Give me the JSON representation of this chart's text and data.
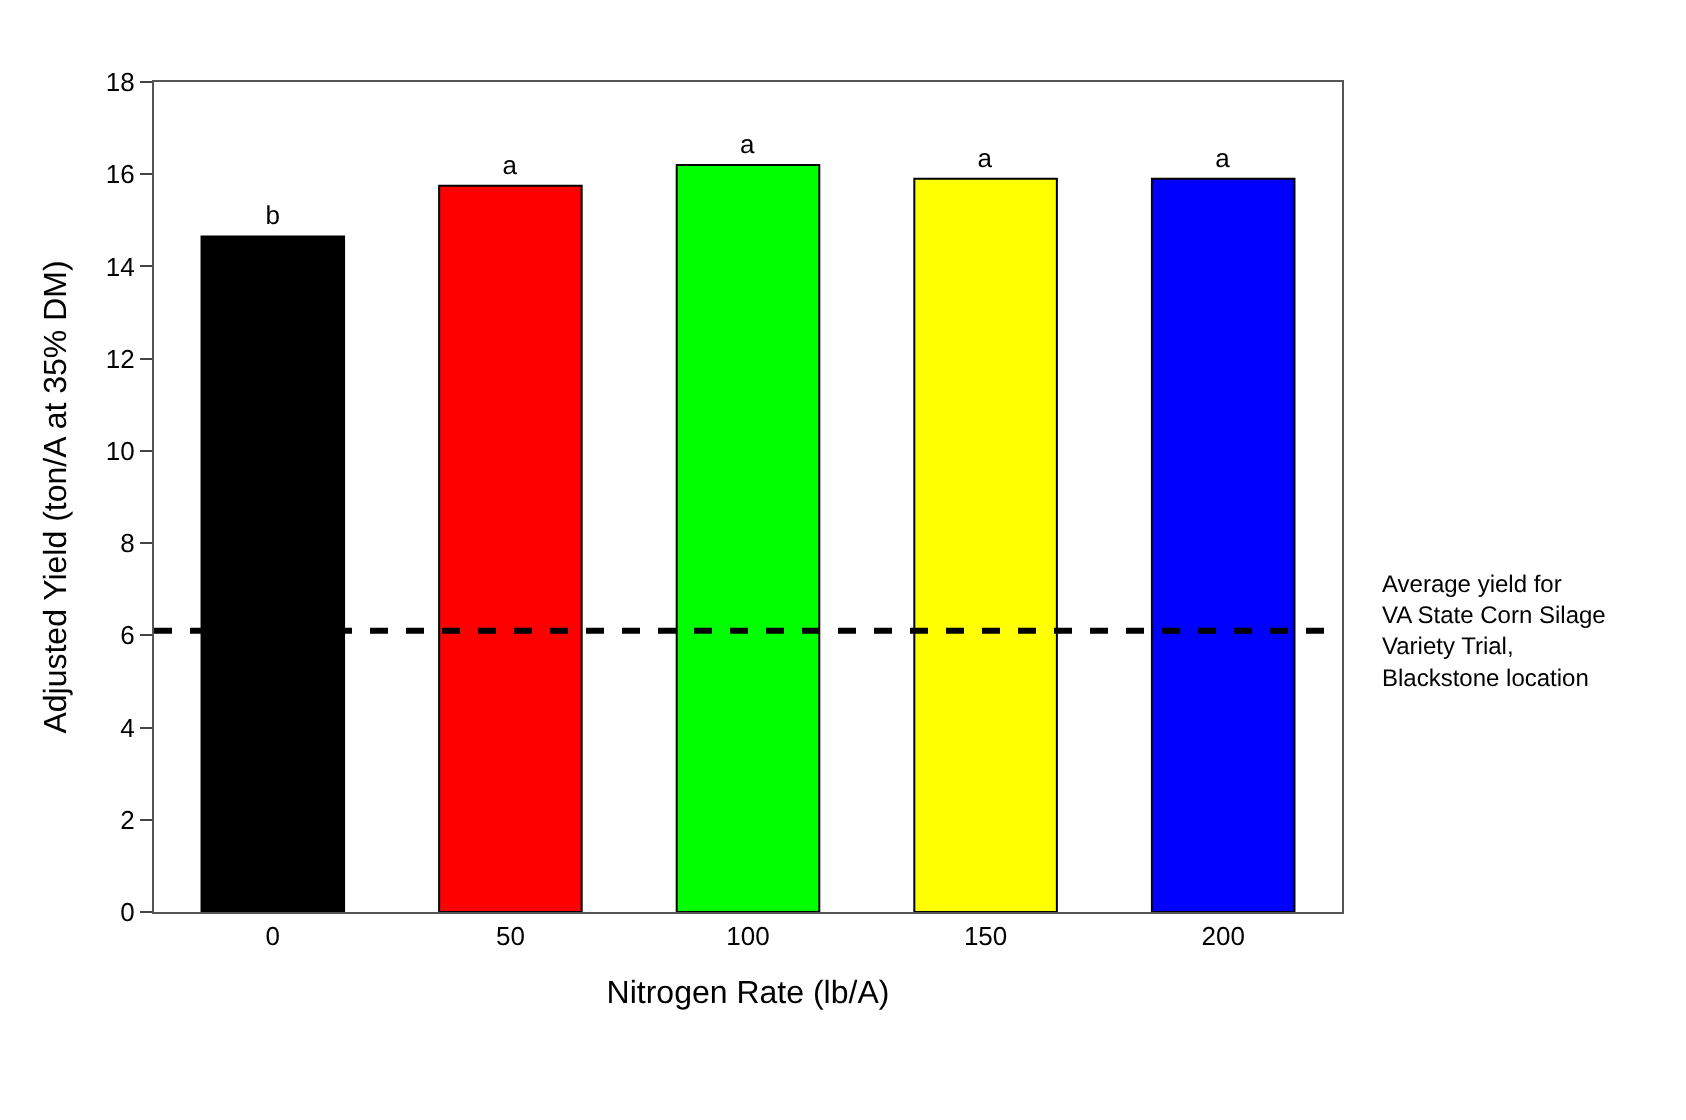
{
  "chart_data": {
    "type": "bar",
    "xlabel": "Nitrogen Rate (lb/A)",
    "ylabel": "Adjusted Yield (ton/A at 35% DM)",
    "categories": [
      "0",
      "50",
      "100",
      "150",
      "200"
    ],
    "values": [
      14.65,
      15.75,
      16.2,
      15.9,
      15.9
    ],
    "colors": [
      "#000000",
      "#ff0000",
      "#00ff00",
      "#ffff00",
      "#0000ff"
    ],
    "value_labels": [
      "b",
      "a",
      "a",
      "a",
      "a"
    ],
    "ylim": [
      0,
      18
    ],
    "yticks": [
      0,
      2,
      4,
      6,
      8,
      10,
      12,
      14,
      16,
      18
    ],
    "ref_lines": [
      {
        "axis": "y",
        "value": 6.1,
        "label": "Average yield for\nVA State Corn Silage\nVariety Trial,\nBlackstone location",
        "color": "#000000",
        "line_style": "dashed"
      }
    ]
  }
}
